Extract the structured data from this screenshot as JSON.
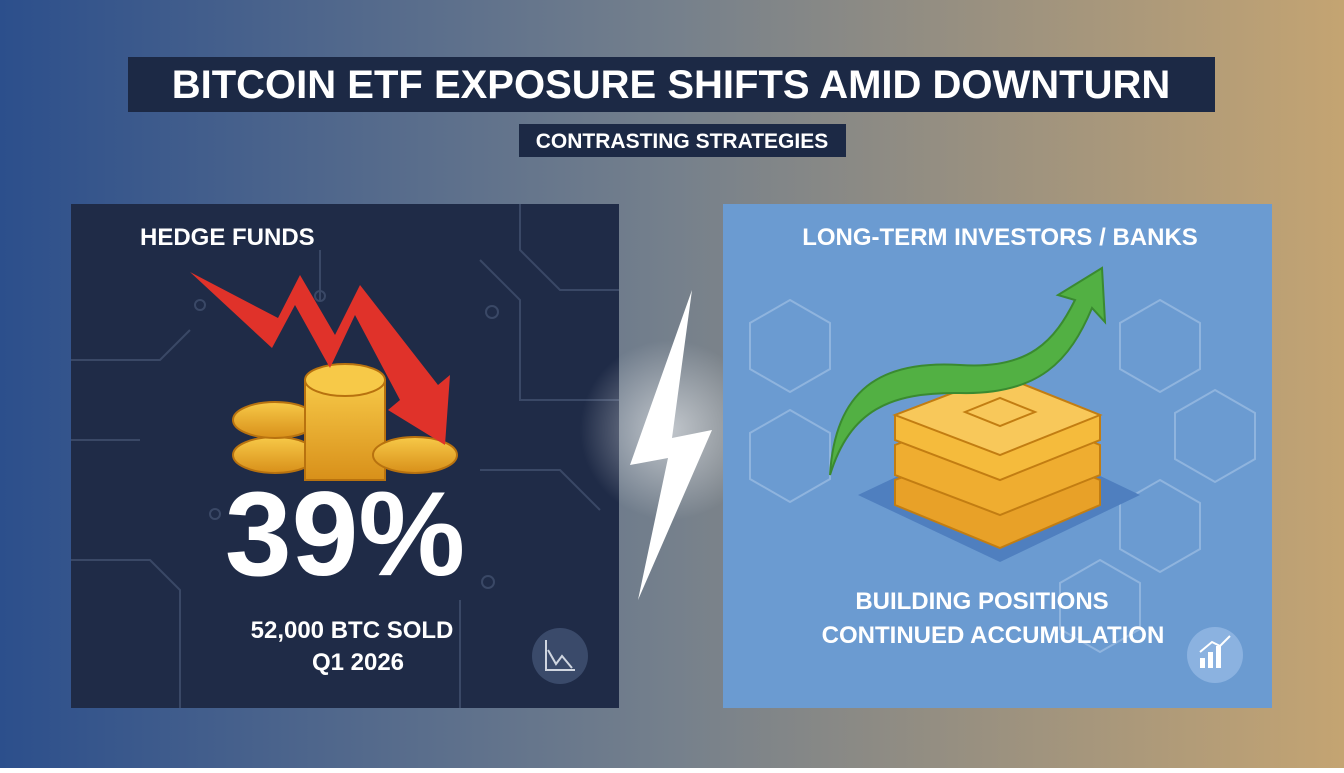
{
  "header": {
    "title": "BITCOIN ETF EXPOSURE SHIFTS AMID DOWNTURN",
    "subtitle": "CONTRASTING STRATEGIES"
  },
  "left_panel": {
    "heading": "HEDGE FUNDS",
    "stat": "39%",
    "detail": "52,000 BTC SOLD",
    "period": "Q1 2026"
  },
  "right_panel": {
    "heading": "LONG-TERM INVESTORS / BANKS",
    "line1": "BUILDING POSITIONS",
    "line2": "CONTINUED ACCUMULATION"
  }
}
